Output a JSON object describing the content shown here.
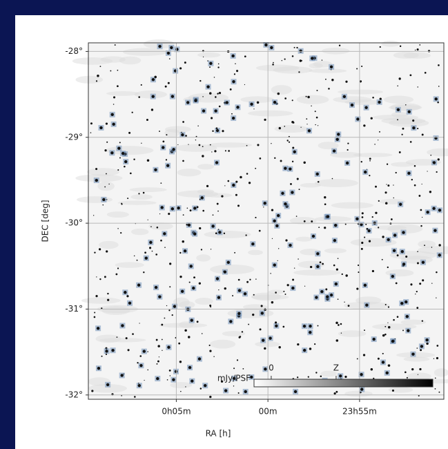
{
  "chart_data": {
    "type": "image",
    "xlabel": "RA [h]",
    "ylabel": "DEC [deg]",
    "xlim": [
      9.8,
      -9.6
    ],
    "ylim": [
      -32.05,
      -27.9
    ],
    "xticks": [
      {
        "value": 5,
        "label": "0h05m"
      },
      {
        "value": 0,
        "label": "00m"
      },
      {
        "value": -5,
        "label": "23h55m"
      }
    ],
    "yticks": [
      {
        "value": -28,
        "label": "-28°"
      },
      {
        "value": -29,
        "label": "-29°"
      },
      {
        "value": -30,
        "label": "-30°"
      },
      {
        "value": -31,
        "label": "-31°"
      },
      {
        "value": -32,
        "label": "-32°"
      }
    ],
    "grid": true,
    "colorbar": {
      "label": "mJy/PSF",
      "clim": [
        -0.53,
        4.98
      ],
      "ticks": [
        0,
        {
          "value": 2,
          "label": "Z"
        }
      ]
    }
  }
}
